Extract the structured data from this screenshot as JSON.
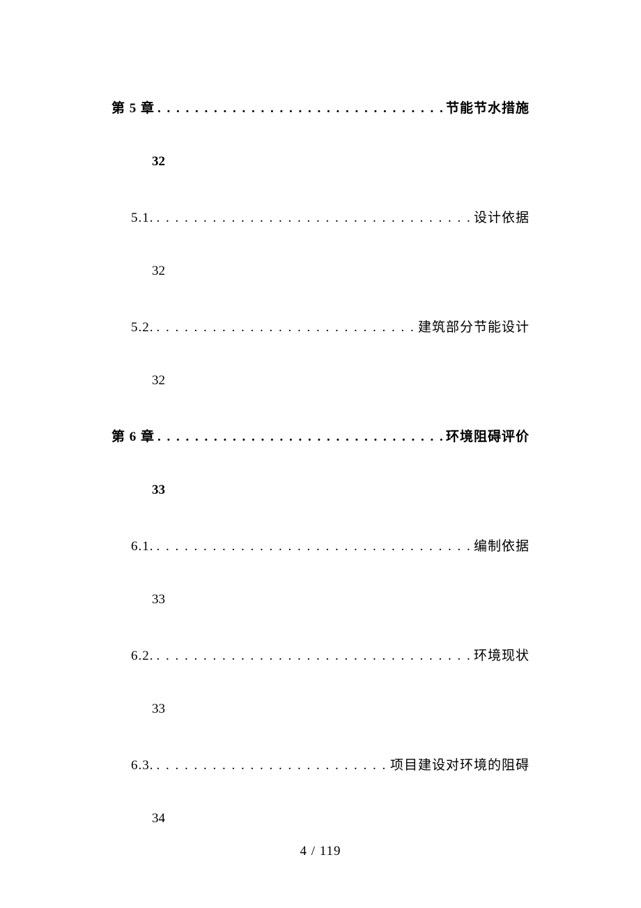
{
  "background_color": "#ffffff",
  "text_color": "#000000",
  "font_family": "SimSun",
  "base_fontsize": 19,
  "toc": [
    {
      "type": "chapter",
      "label": "第 5 章",
      "title": "节能节水措施",
      "page": "32",
      "bold": true
    },
    {
      "type": "section",
      "label": "5.1.",
      "title": "设计依据",
      "page": "32",
      "bold": false
    },
    {
      "type": "section",
      "label": "5.2.",
      "title": "建筑部分节能设计",
      "page": "32",
      "bold": false
    },
    {
      "type": "chapter",
      "label": "第 6 章",
      "title": "环境阻碍评价",
      "page": "33",
      "bold": true
    },
    {
      "type": "section",
      "label": "6.1.",
      "title": "编制依据",
      "page": "33",
      "bold": false
    },
    {
      "type": "section",
      "label": "6.2.",
      "title": "环境现状",
      "page": "33",
      "bold": false
    },
    {
      "type": "section",
      "label": "6.3.",
      "title": "项目建设对环境的阻碍",
      "page": "34",
      "bold": false
    }
  ],
  "dots": ". . . . . . . . . . . . . . . . . . . . . . . . . . . . . . . . . . . . . . . . . . . . . . . . . . . . . . . . . . . .",
  "footer": {
    "current": "4",
    "sep": " / ",
    "total": "119"
  }
}
